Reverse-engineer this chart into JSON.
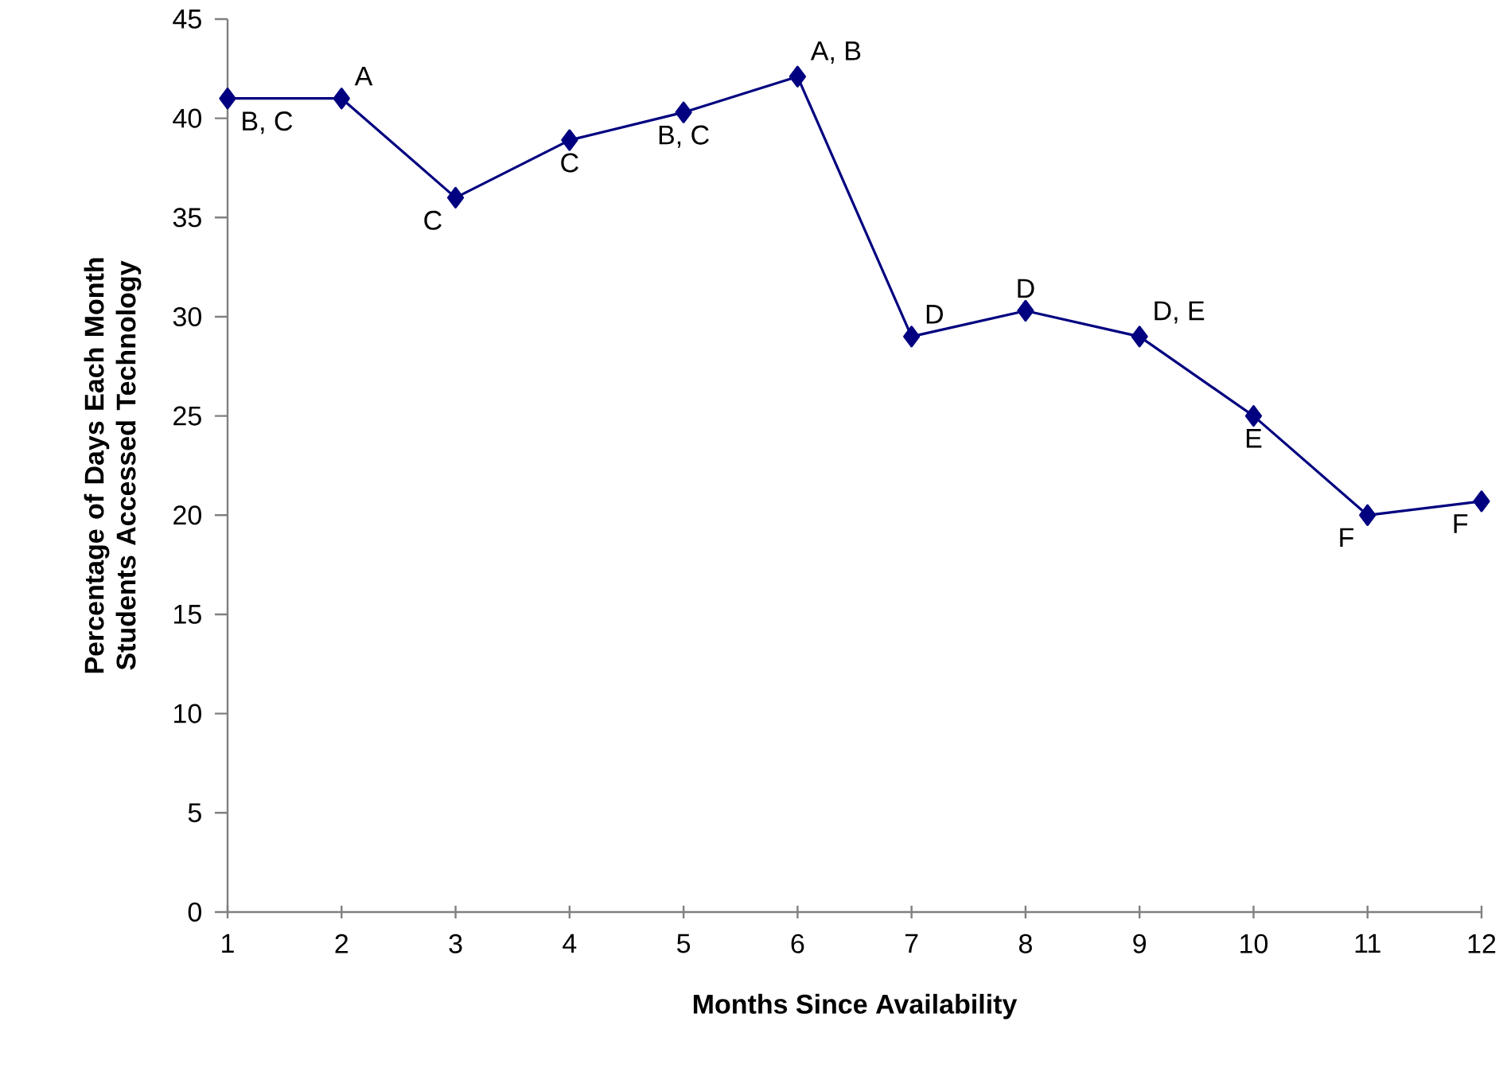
{
  "chart_data": {
    "type": "line",
    "xlabel": "Months Since Availability",
    "ylabel": "Percentage of Days Each Month Students Accessed Technology",
    "x": [
      1,
      2,
      3,
      4,
      5,
      6,
      7,
      8,
      9,
      10,
      11,
      12
    ],
    "values": [
      41,
      41,
      36,
      38.9,
      40.3,
      42.1,
      29,
      30.3,
      29,
      25,
      20,
      20.7
    ],
    "color": "#000080",
    "marker": "diamond",
    "line_style": "solid",
    "xlim": [
      1,
      12
    ],
    "ylim": [
      0,
      45
    ],
    "xticks": [
      1,
      2,
      3,
      4,
      5,
      6,
      7,
      8,
      9,
      10,
      11,
      12
    ],
    "yticks": [
      0,
      5,
      10,
      15,
      20,
      25,
      30,
      35,
      40,
      45
    ],
    "annotations": [
      {
        "text": "B, C",
        "x": 1,
        "y": 41
      },
      {
        "text": "A",
        "x": 2,
        "y": 41
      },
      {
        "text": "C",
        "x": 3,
        "y": 36
      },
      {
        "text": "C",
        "x": 4,
        "y": 38.9
      },
      {
        "text": "B, C",
        "x": 5,
        "y": 40.3
      },
      {
        "text": "A, B",
        "x": 6,
        "y": 42.1
      },
      {
        "text": "D",
        "x": 7,
        "y": 29
      },
      {
        "text": "D",
        "x": 8,
        "y": 30.3
      },
      {
        "text": "D, E",
        "x": 9,
        "y": 29
      },
      {
        "text": "E",
        "x": 10,
        "y": 25
      },
      {
        "text": "F",
        "x": 11,
        "y": 20
      },
      {
        "text": "F",
        "x": 12,
        "y": 20.7
      }
    ]
  }
}
